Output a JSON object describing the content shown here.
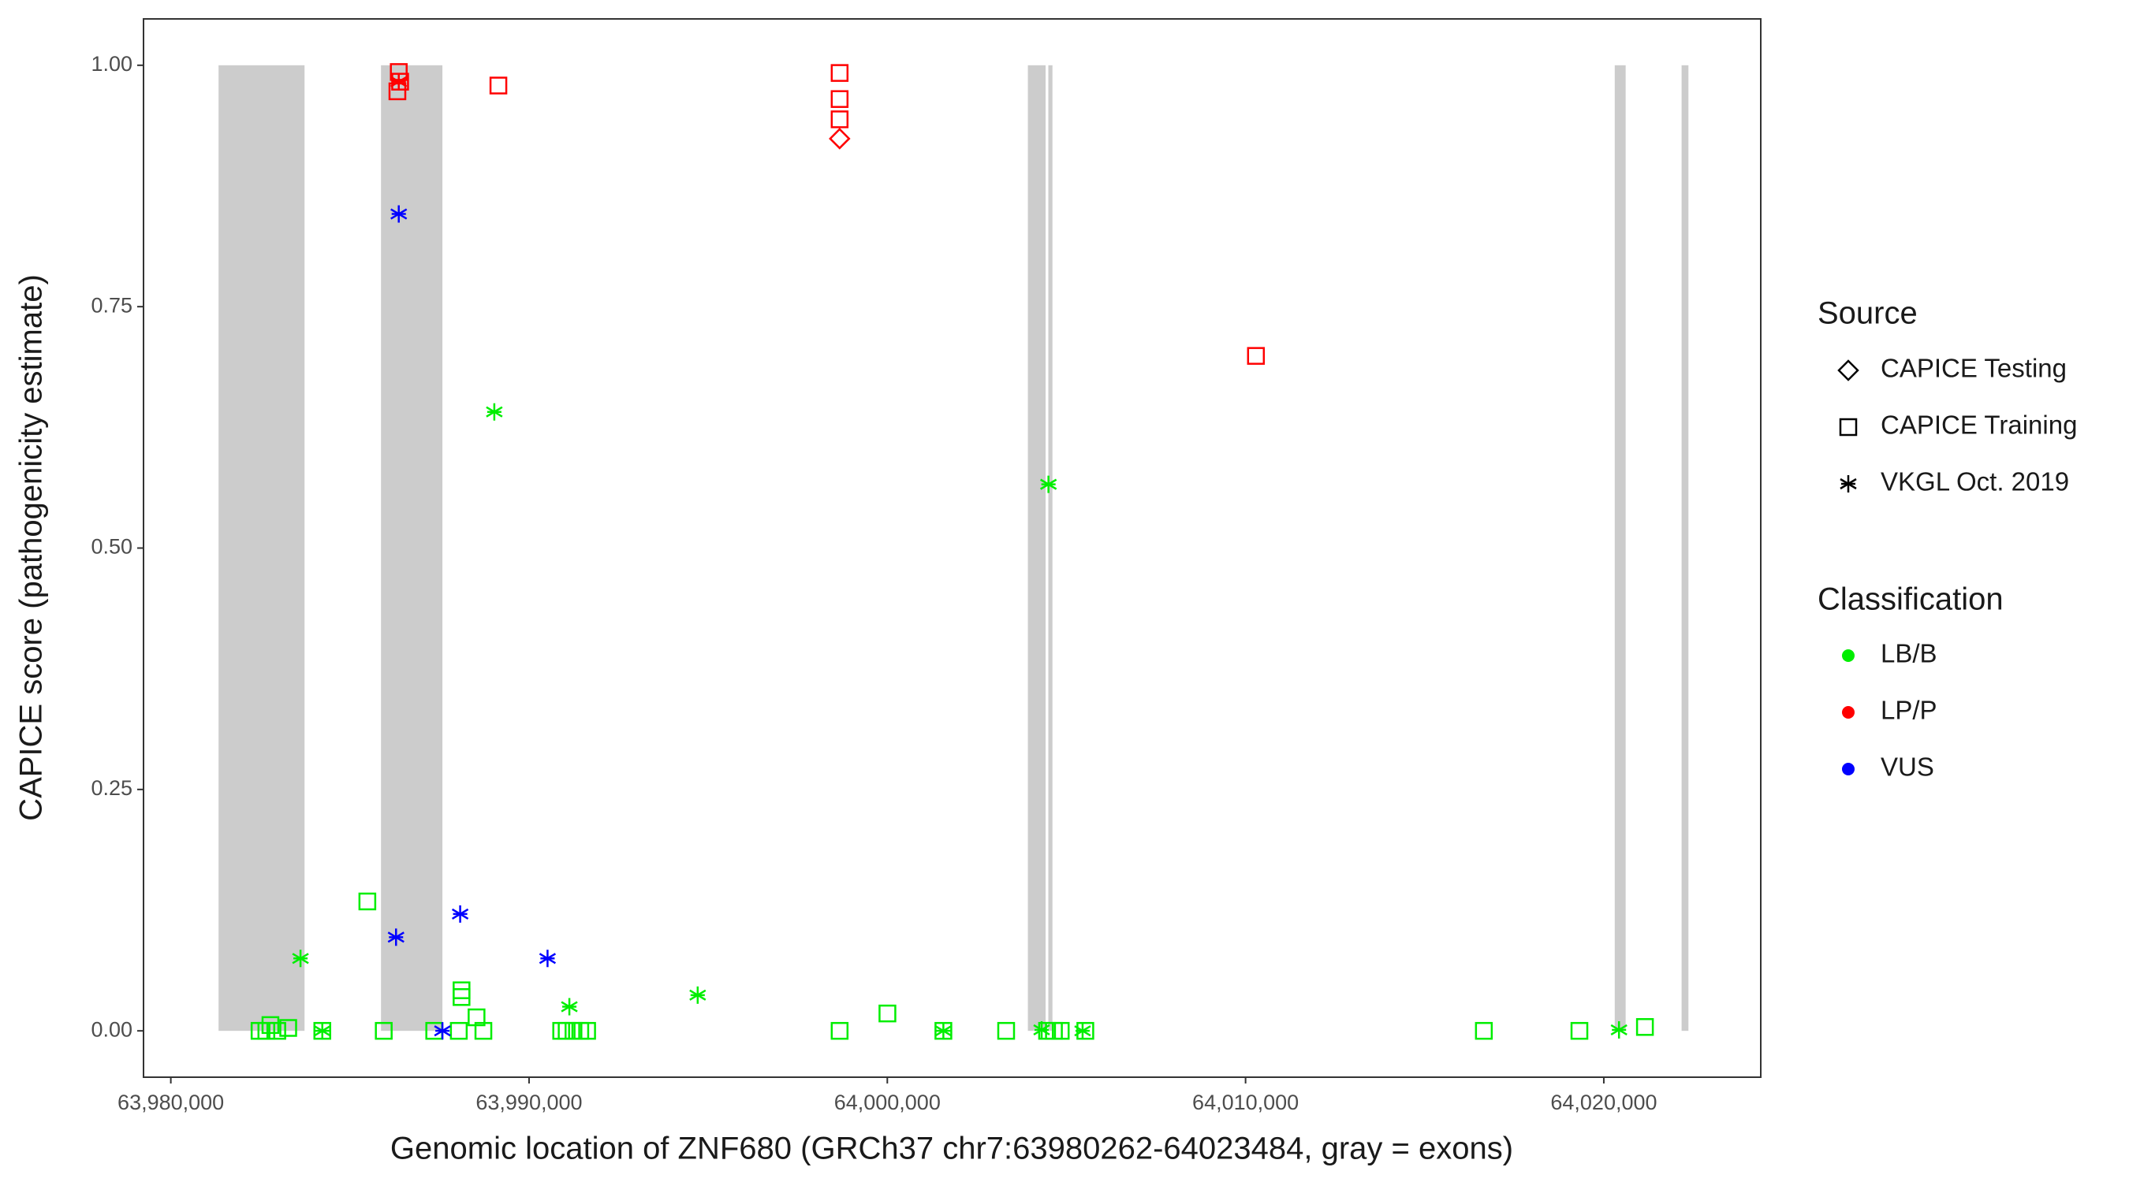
{
  "chart_data": {
    "type": "scatter",
    "x_label": "Genomic location of ZNF680 (GRCh37 chr7:63980262-64023484, gray = exons)",
    "y_label": "CAPICE score (pathogenicity estimate)",
    "xlim": [
      63979238,
      64024381
    ],
    "ylim": [
      -0.048,
      1.048
    ],
    "xticks": [
      {
        "value": 63980000,
        "label": "63,980,000"
      },
      {
        "value": 63990000,
        "label": "63,990,000"
      },
      {
        "value": 64000000,
        "label": "64,000,000"
      },
      {
        "value": 64010000,
        "label": "64,010,000"
      },
      {
        "value": 64020000,
        "label": "64,020,000"
      }
    ],
    "yticks": [
      {
        "value": 0,
        "label": "0.00"
      },
      {
        "value": 0.25,
        "label": "0.25"
      },
      {
        "value": 0.5,
        "label": "0.50"
      },
      {
        "value": 0.75,
        "label": "0.75"
      },
      {
        "value": 1,
        "label": "1.00"
      }
    ],
    "grid": false,
    "legend_position": "right",
    "exon_color": "#cccccc",
    "exons": [
      [
        63981333,
        63983733
      ],
      [
        63985867,
        63987581
      ],
      [
        64003924,
        64004419
      ],
      [
        64004495,
        64004610
      ],
      [
        64020305,
        64020610
      ],
      [
        64022171,
        64022362
      ]
    ],
    "source_title": "Source",
    "sources": [
      {
        "name": "CAPICE Testing",
        "shape": "diamond"
      },
      {
        "name": "CAPICE Training",
        "shape": "square"
      },
      {
        "name": "VKGL Oct. 2019",
        "shape": "asterisk"
      }
    ],
    "classification_title": "Classification",
    "classifications": [
      {
        "name": "LB/B",
        "color": "#00ee00"
      },
      {
        "name": "LP/P",
        "color": "#ff0000"
      },
      {
        "name": "VUS",
        "color": "#0000ff"
      }
    ],
    "series": [
      {
        "source": "CAPICE Training",
        "classification": "LB/B",
        "x": [
          63985486,
          63988115,
          63988115,
          63988534,
          64000003,
          64021148,
          63982477,
          63982667,
          63982781,
          63982972,
          63983277,
          63984229,
          63985944,
          63987353,
          63988039,
          63988725,
          63990897,
          63991049,
          63991240,
          63991430,
          63991621,
          63998669,
          64001565,
          64003317,
          64004460,
          64004651,
          64004841,
          64005527,
          64016652,
          64019319
        ],
        "y": [
          0.134,
          0.042,
          0.035,
          0.014,
          0.018,
          0.004,
          0,
          0,
          0.006,
          0,
          0.003,
          0,
          0,
          0,
          0,
          0,
          0,
          0,
          0,
          0,
          0,
          0,
          0,
          0,
          0,
          0,
          0,
          0,
          0,
          0
        ]
      },
      {
        "source": "VKGL Oct. 2019",
        "classification": "LB/B",
        "x": [
          63989030,
          64004498,
          63983620,
          63991125,
          63994707,
          63984229,
          64001565,
          64004308,
          64020424,
          64005451
        ],
        "y": [
          0.641,
          0.566,
          0.075,
          0.025,
          0.037,
          0,
          0,
          0.001,
          0.001,
          0
        ]
      },
      {
        "source": "CAPICE Training",
        "classification": "LP/P",
        "x": [
          63986363,
          63986401,
          63986325,
          63989144,
          63998669,
          63998669,
          63998669,
          64010290
        ],
        "y": [
          0.993,
          0.983,
          0.973,
          0.979,
          0.992,
          0.965,
          0.944,
          0.699
        ]
      },
      {
        "source": "CAPICE Testing",
        "classification": "LP/P",
        "x": [
          63998669
        ],
        "y": [
          0.924
        ]
      },
      {
        "source": "VKGL Oct. 2019",
        "classification": "LP/P",
        "x": [
          63986363
        ],
        "y": [
          0.983
        ]
      },
      {
        "source": "VKGL Oct. 2019",
        "classification": "VUS",
        "x": [
          63986363,
          63986287,
          63988077,
          63990516,
          63987582
        ],
        "y": [
          0.846,
          0.097,
          0.121,
          0.075,
          0
        ]
      }
    ]
  }
}
